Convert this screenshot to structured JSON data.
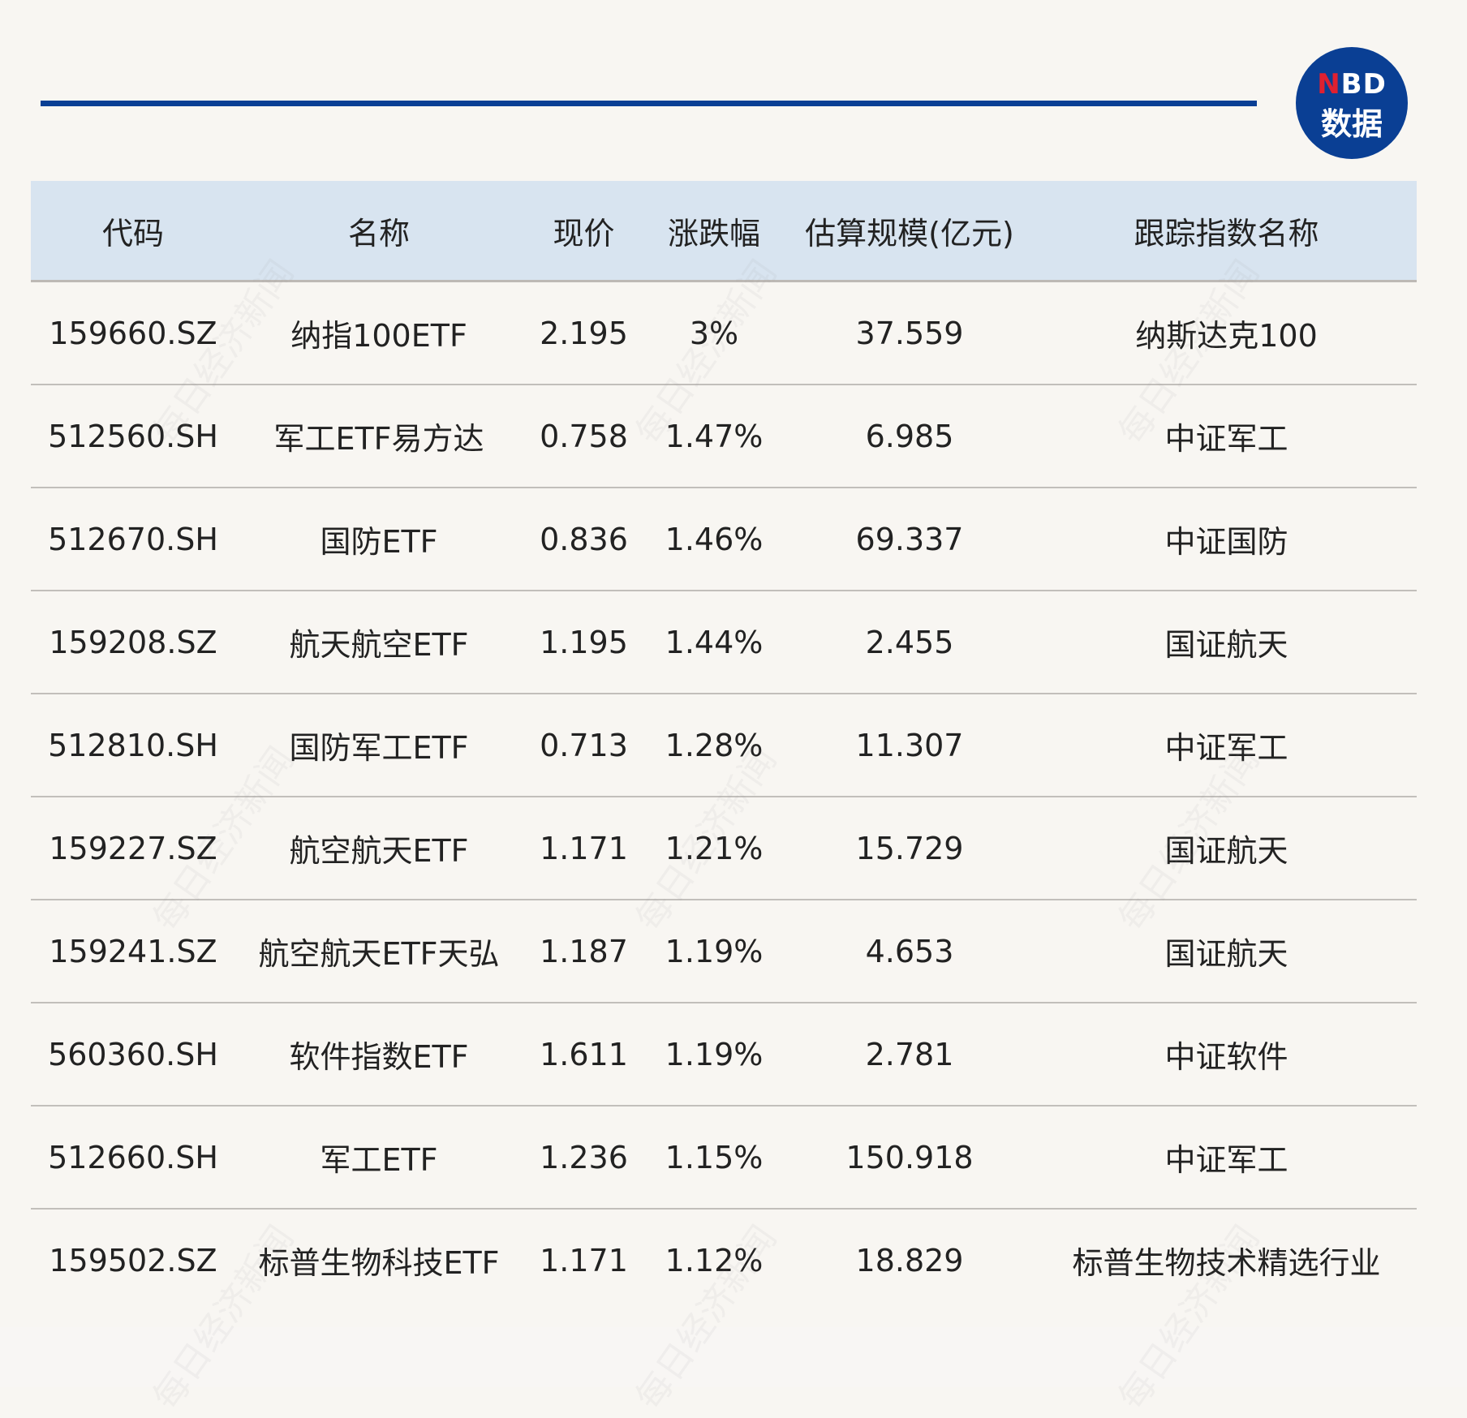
{
  "brand": {
    "logo_top": "NBD",
    "logo_bottom": "数据",
    "accent": "#0a3f94",
    "logo_n_color": "#e02030",
    "watermark": "每日经济新闻"
  },
  "table": {
    "headers": [
      "代码",
      "名称",
      "现价",
      "涨跌幅",
      "估算规模(亿元)",
      "跟踪指数名称"
    ],
    "rows": [
      [
        "159660.SZ",
        "纳指100ETF",
        "2.195",
        "3%",
        "37.559",
        "纳斯达克100"
      ],
      [
        "512560.SH",
        "军工ETF易方达",
        "0.758",
        "1.47%",
        "6.985",
        "中证军工"
      ],
      [
        "512670.SH",
        "国防ETF",
        "0.836",
        "1.46%",
        "69.337",
        "中证国防"
      ],
      [
        "159208.SZ",
        "航天航空ETF",
        "1.195",
        "1.44%",
        "2.455",
        "国证航天"
      ],
      [
        "512810.SH",
        "国防军工ETF",
        "0.713",
        "1.28%",
        "11.307",
        "中证军工"
      ],
      [
        "159227.SZ",
        "航空航天ETF",
        "1.171",
        "1.21%",
        "15.729",
        "国证航天"
      ],
      [
        "159241.SZ",
        "航空航天ETF天弘",
        "1.187",
        "1.19%",
        "4.653",
        "国证航天"
      ],
      [
        "560360.SH",
        "软件指数ETF",
        "1.611",
        "1.19%",
        "2.781",
        "中证软件"
      ],
      [
        "512660.SH",
        "军工ETF",
        "1.236",
        "1.15%",
        "150.918",
        "中证军工"
      ],
      [
        "159502.SZ",
        "标普生物科技ETF",
        "1.171",
        "1.12%",
        "18.829",
        "标普生物技术精选行业"
      ]
    ]
  }
}
